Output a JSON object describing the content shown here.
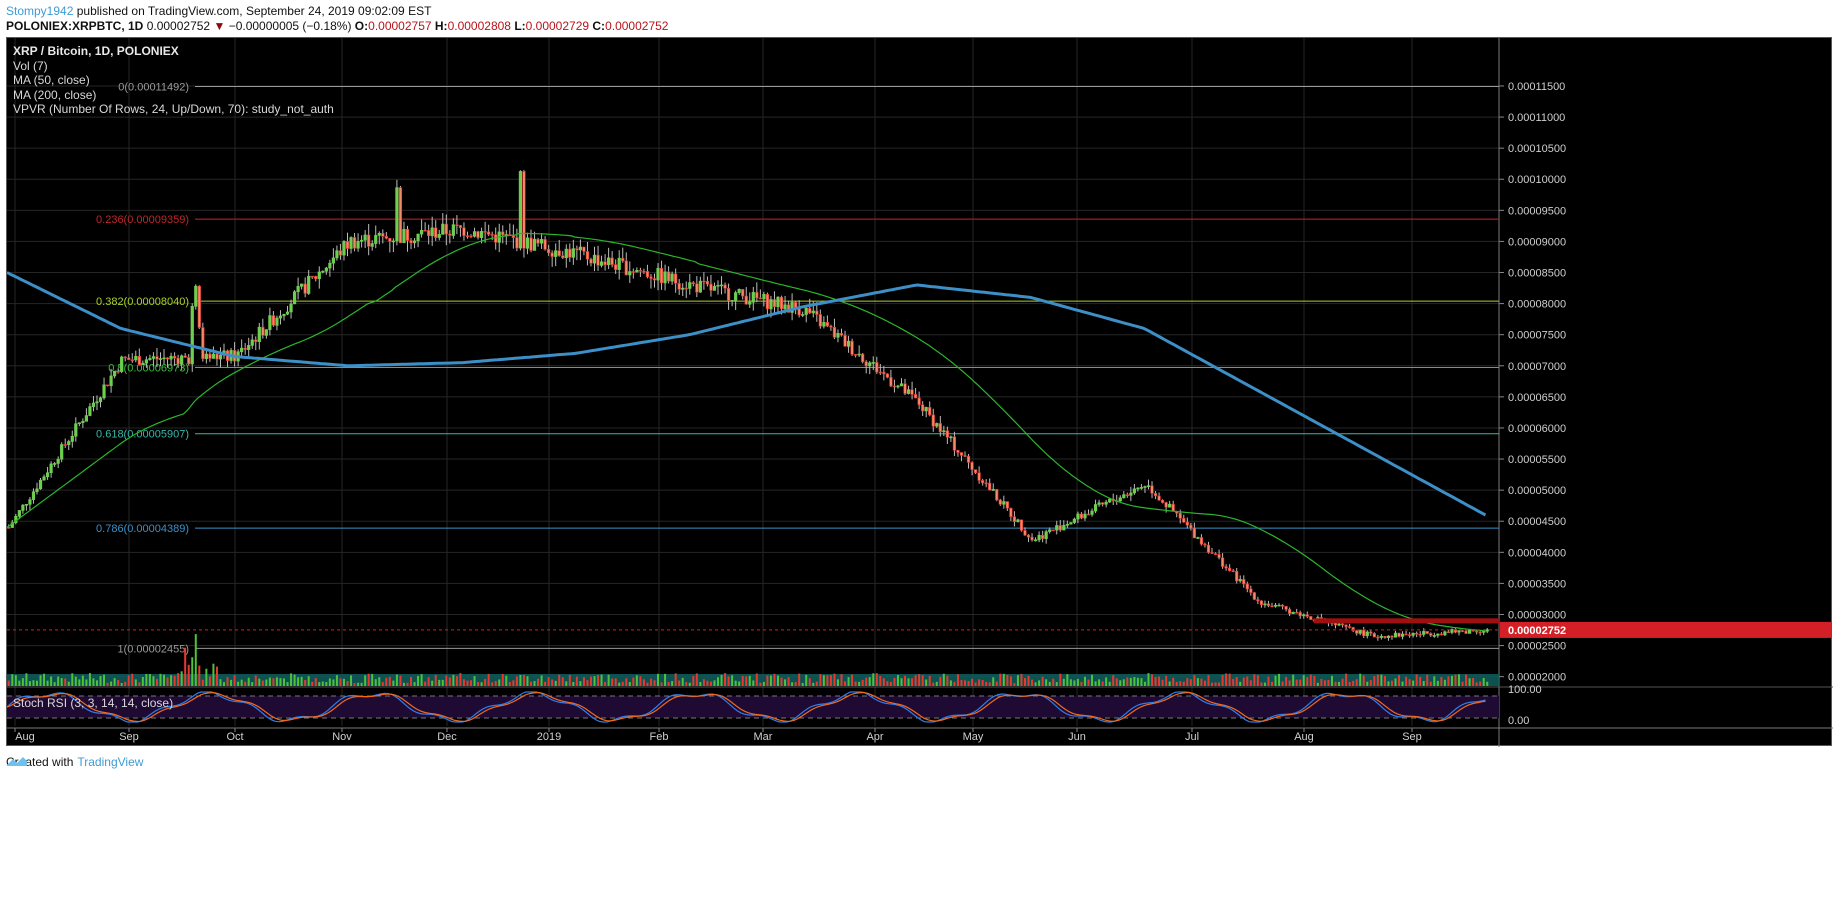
{
  "header": {
    "author": "Stompy1942",
    "published_text": " published on TradingView.com, September 24, 2019 09:02:09 EST",
    "symbol": "POLONIEX:XRPBTC, 1D",
    "last": "0.00002752",
    "change_arrow": "▼",
    "change": "−0.00000005 (−0.18%)",
    "o_label": "O:",
    "o": "0.00002757",
    "h_label": "H:",
    "h": "0.00002808",
    "l_label": "L:",
    "l": "0.00002729",
    "c_label": "C:",
    "c": "0.00002752"
  },
  "legend": {
    "title": "XRP / Bitcoin, 1D, POLONIEX",
    "items": [
      "Vol (7)",
      "MA (50, close)",
      "MA (200, close)",
      "VPVR (Number Of Rows, 24, Up/Down, 70): study_not_auth"
    ]
  },
  "stoch_label": "Stoch RSI (3, 3, 14, 14, close)",
  "footer": {
    "created_with": "Created with",
    "brand": "TradingView"
  },
  "colors": {
    "background": "#000000",
    "up": "#6ecf4f",
    "down": "#f08a6a",
    "down_border": "#e0302a",
    "ma50": "#2bb52b",
    "ma200": "#3d8fc8",
    "fib_0": "#9a9a9a",
    "fib_0236": "#c0262a",
    "fib_0382": "#a8d22a",
    "fib_05": "#3fbf3f",
    "fib_0618": "#38b7a8",
    "fib_0786": "#3d8fc8",
    "fib_1": "#9a9a9a",
    "price_tag": "#d32027",
    "resistance": "#a01010",
    "stoch_k": "#2f7ee8",
    "stoch_d": "#f06a1e",
    "stoch_band": "#1f0a33",
    "vol_band": "#0e5a5a"
  },
  "chart_data": {
    "type": "candlestick",
    "title": "XRP / Bitcoin, 1D, POLONIEX",
    "xlabel": "",
    "ylabel": "",
    "x_ticks": [
      "Aug",
      "Sep",
      "Oct",
      "Nov",
      "Dec",
      "2019",
      "Feb",
      "Mar",
      "Apr",
      "May",
      "Jun",
      "Jul",
      "Aug",
      "Sep"
    ],
    "y_ticks": [
      "0.00011500",
      "0.00011000",
      "0.00010500",
      "0.00010000",
      "0.00009500",
      "0.00009000",
      "0.00008500",
      "0.00008000",
      "0.00007500",
      "0.00007000",
      "0.00006500",
      "0.00006000",
      "0.00005500",
      "0.00005000",
      "0.00004500",
      "0.00004000",
      "0.00003500",
      "0.00003000",
      "0.00002500",
      "0.00002000"
    ],
    "ylim": [
      1.85e-05,
      0.0001195
    ],
    "current_price_label": "0.00002752",
    "fibonacci": [
      {
        "level": "0",
        "value": 0.00011492,
        "label": "0(0.00011492)"
      },
      {
        "level": "0.236",
        "value": 9.359e-05,
        "label": "0.236(0.00009359)"
      },
      {
        "level": "0.382",
        "value": 8.04e-05,
        "label": "0.382(0.00008040)"
      },
      {
        "level": "0.5",
        "value": 6.973e-05,
        "label": "0.5(0.00006973)"
      },
      {
        "level": "0.618",
        "value": 5.907e-05,
        "label": "0.618(0.00005907)"
      },
      {
        "level": "0.786",
        "value": 4.389e-05,
        "label": "0.786(0.00004389)"
      },
      {
        "level": "1",
        "value": 2.455e-05,
        "label": "1(0.00002455)"
      }
    ],
    "resistance_line": {
      "value": 2.89e-05,
      "from_month": "Aug 2019"
    },
    "monthly_close_approx": {
      "x": [
        "2018-08",
        "2018-09",
        "2018-10",
        "2018-11",
        "2018-12",
        "2019-01",
        "2019-02",
        "2019-03",
        "2019-04",
        "2019-05",
        "2019-06",
        "2019-07",
        "2019-08",
        "2019-09"
      ],
      "close": [
        4.4e-05,
        7.1e-05,
        7.15e-05,
        9e-05,
        9.2e-05,
        8.8e-05,
        8.3e-05,
        7.9e-05,
        6.4e-05,
        4.2e-05,
        5.1e-05,
        3.2e-05,
        2.65e-05,
        2.75e-05
      ]
    },
    "ma200_approx": {
      "x": [
        "2018-08",
        "2018-09",
        "2018-10",
        "2018-11",
        "2018-12",
        "2019-01",
        "2019-02",
        "2019-03",
        "2019-04",
        "2019-05",
        "2019-06",
        "2019-07",
        "2019-08",
        "2019-09"
      ],
      "value": [
        8.5e-05,
        7.6e-05,
        7.15e-05,
        7e-05,
        7.05e-05,
        7.2e-05,
        7.5e-05,
        7.95e-05,
        8.3e-05,
        8.1e-05,
        7.6e-05,
        6.6e-05,
        5.6e-05,
        4.6e-05
      ]
    },
    "stoch_rsi_levels": {
      "upper": "100.00",
      "lower": "0.00"
    }
  }
}
